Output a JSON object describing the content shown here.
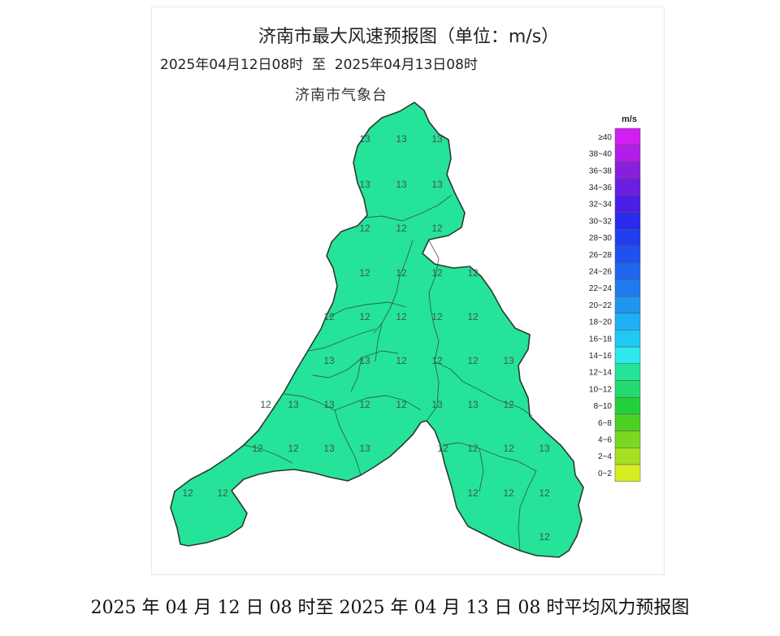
{
  "map": {
    "title": "济南市最大风速预报图（单位：m/s）",
    "subtitle": "2025年04月12日08时  至  2025年04月13日08时",
    "agency": "济南市气象台",
    "fill_color": "#26e39a",
    "border_color": "#2a3a30"
  },
  "legend": {
    "unit": "m/s",
    "classes": [
      {
        "label": "≥40",
        "color": "#d21ef0"
      },
      {
        "label": "38~40",
        "color": "#b21ee8"
      },
      {
        "label": "36~38",
        "color": "#8a1edf"
      },
      {
        "label": "34~36",
        "color": "#6a1ee0"
      },
      {
        "label": "32~34",
        "color": "#4a1ee6"
      },
      {
        "label": "30~32",
        "color": "#2a2aee"
      },
      {
        "label": "28~30",
        "color": "#1e3ef0"
      },
      {
        "label": "26~28",
        "color": "#1e52f0"
      },
      {
        "label": "24~26",
        "color": "#1e66ee"
      },
      {
        "label": "22~24",
        "color": "#1e7cee"
      },
      {
        "label": "20~22",
        "color": "#1e96f0"
      },
      {
        "label": "18~20",
        "color": "#1eb0f2"
      },
      {
        "label": "16~18",
        "color": "#1ecaf4"
      },
      {
        "label": "14~16",
        "color": "#2ee8ee"
      },
      {
        "label": "12~14",
        "color": "#26e39a"
      },
      {
        "label": "10~12",
        "color": "#22da6e"
      },
      {
        "label": "8~10",
        "color": "#22d03c"
      },
      {
        "label": "6~8",
        "color": "#4cd022"
      },
      {
        "label": "4~6",
        "color": "#7ad822"
      },
      {
        "label": "2~4",
        "color": "#a6e022"
      },
      {
        "label": "0~2",
        "color": "#d4ee22"
      }
    ]
  },
  "values": [
    "13",
    "13",
    "13",
    "13",
    "13",
    "13",
    "12",
    "12",
    "12",
    "12",
    "12",
    "12",
    "12",
    "12",
    "12",
    "12",
    "12",
    "12",
    "13",
    "13",
    "12",
    "12",
    "12",
    "13",
    "12",
    "13",
    "13",
    "12",
    "12",
    "13",
    "13",
    "12",
    "12",
    "12",
    "13",
    "13",
    "12",
    "12",
    "12",
    "13",
    "12",
    "12",
    "12",
    "12",
    "12",
    "12"
  ],
  "caption": "2025 年 04 月 12 日 08 时至 2025 年 04 月 13 日 08 时平均风力预报图"
}
